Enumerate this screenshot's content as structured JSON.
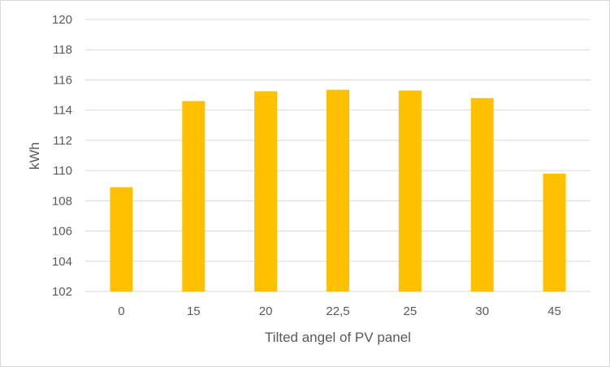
{
  "chart_data": {
    "type": "bar",
    "title": "",
    "xlabel": "Tilted angel of PV panel",
    "ylabel": "kWh",
    "categories": [
      "0",
      "15",
      "20",
      "22,5",
      "25",
      "30",
      "45"
    ],
    "values": [
      108.9,
      114.6,
      115.25,
      115.35,
      115.3,
      114.8,
      109.8
    ],
    "ylim": [
      102,
      120
    ],
    "yticks": [
      "102",
      "104",
      "106",
      "108",
      "110",
      "112",
      "114",
      "116",
      "118",
      "120"
    ],
    "grid": true,
    "legend": "none",
    "bar_color": "#ffc000",
    "gridline_color": "#d9d9d9"
  }
}
